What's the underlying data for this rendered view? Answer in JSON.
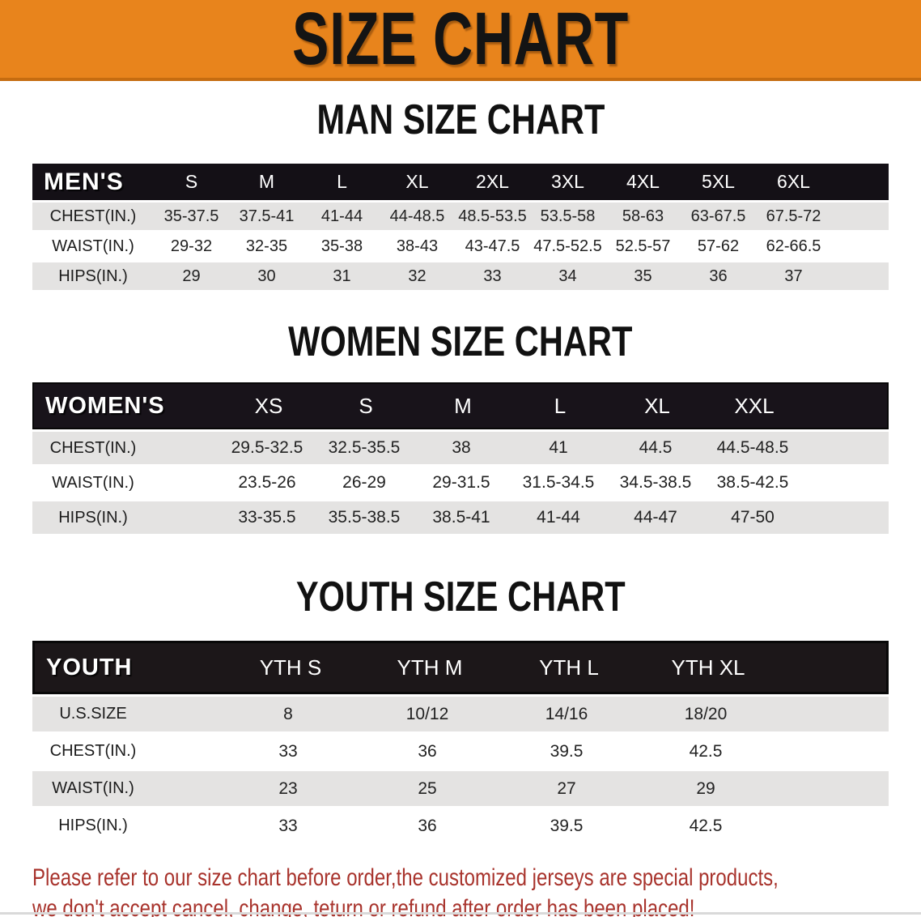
{
  "banner": {
    "title": "SIZE CHART"
  },
  "colors": {
    "banner_bg": "#e8841c",
    "banner_edge": "#c56c10",
    "header_bar": "#17121a",
    "row_shade": "#e4e3e2",
    "note_red": "#a8332c"
  },
  "men": {
    "section_title": "MAN SIZE CHART",
    "label": "MEN'S",
    "columns": [
      "S",
      "M",
      "L",
      "XL",
      "2XL",
      "3XL",
      "4XL",
      "5XL",
      "6XL"
    ],
    "rows": [
      {
        "label": "CHEST(IN.)",
        "values": [
          "35-37.5",
          "37.5-41",
          "41-44",
          "44-48.5",
          "48.5-53.5",
          "53.5-58",
          "58-63",
          "63-67.5",
          "67.5-72"
        ]
      },
      {
        "label": "WAIST(IN.)",
        "values": [
          "29-32",
          "32-35",
          "35-38",
          "38-43",
          "43-47.5",
          "47.5-52.5",
          "52.5-57",
          "57-62",
          "62-66.5"
        ]
      },
      {
        "label": "HIPS(IN.)",
        "values": [
          "29",
          "30",
          "31",
          "32",
          "33",
          "34",
          "35",
          "36",
          "37"
        ]
      }
    ]
  },
  "women": {
    "section_title": "WOMEN SIZE CHART",
    "label": "WOMEN'S",
    "columns": [
      "XS",
      "S",
      "M",
      "L",
      "XL",
      "XXL"
    ],
    "rows": [
      {
        "label": "CHEST(IN.)",
        "values": [
          "29.5-32.5",
          "32.5-35.5",
          "38",
          "41",
          "44.5",
          "44.5-48.5"
        ]
      },
      {
        "label": "WAIST(IN.)",
        "values": [
          "23.5-26",
          "26-29",
          "29-31.5",
          "31.5-34.5",
          "34.5-38.5",
          "38.5-42.5"
        ]
      },
      {
        "label": "HIPS(IN.)",
        "values": [
          "33-35.5",
          "35.5-38.5",
          "38.5-41",
          "41-44",
          "44-47",
          "47-50"
        ]
      }
    ]
  },
  "youth": {
    "section_title": "YOUTH SIZE CHART",
    "label": "YOUTH",
    "columns": [
      "YTH S",
      "YTH M",
      "YTH L",
      "YTH XL"
    ],
    "rows": [
      {
        "label": "U.S.SIZE",
        "values": [
          "8",
          "10/12",
          "14/16",
          "18/20"
        ]
      },
      {
        "label": "CHEST(IN.)",
        "values": [
          "33",
          "36",
          "39.5",
          "42.5"
        ]
      },
      {
        "label": "WAIST(IN.)",
        "values": [
          "23",
          "25",
          "27",
          "29"
        ]
      },
      {
        "label": "HIPS(IN.)",
        "values": [
          "33",
          "36",
          "39.5",
          "42.5"
        ]
      }
    ]
  },
  "note": {
    "line1": "Please refer to our size chart before order,the customized jerseys are special products,",
    "line2": "we don't accept cancel, change, teturn or refund after order has been placed!"
  }
}
